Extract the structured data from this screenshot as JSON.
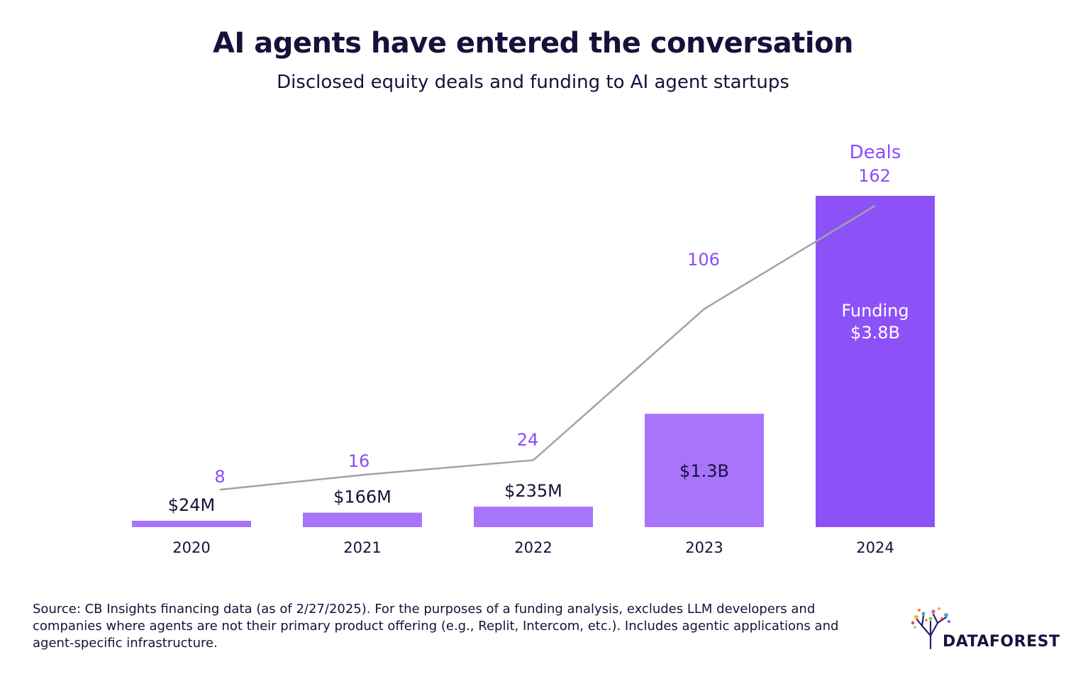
{
  "title": "AI agents have entered the conversation",
  "subtitle": "Disclosed equity deals and funding to AI agent startups",
  "source": "Source: CB Insights financing data (as of 2/27/2025). For the purposes of a funding analysis, excludes LLM developers and companies where agents are not their primary product offering (e.g., Replit, Intercom, etc.). Includes agentic applications and agent-specific infrastructure.",
  "logo": {
    "text": "DATAFOREST"
  },
  "colors": {
    "title": "#15123a",
    "deals_label": "#8b4cf7",
    "deals_line": "#a3a3a3",
    "bar_light": "#a874fc",
    "bar_dark": "#8c52f8",
    "bar_text_on_dark": "#ffffff"
  },
  "chart_data": {
    "type": "bar",
    "categories": [
      "2020",
      "2021",
      "2022",
      "2023",
      "2024"
    ],
    "series": [
      {
        "name": "Funding",
        "kind": "bar",
        "unit": "USD millions",
        "values": [
          24,
          166,
          235,
          1300,
          3800
        ],
        "labels": [
          "$24M",
          "$166M",
          "$235M",
          "$1.3B",
          "$3.8B"
        ]
      },
      {
        "name": "Deals",
        "kind": "line",
        "values": [
          8,
          16,
          24,
          106,
          162
        ],
        "labels": [
          "8",
          "16",
          "24",
          "106",
          "162"
        ]
      }
    ],
    "funding_legend_label": "Funding",
    "deals_legend_label": "Deals",
    "xlabel": "",
    "ylabel": "",
    "grid": false
  }
}
